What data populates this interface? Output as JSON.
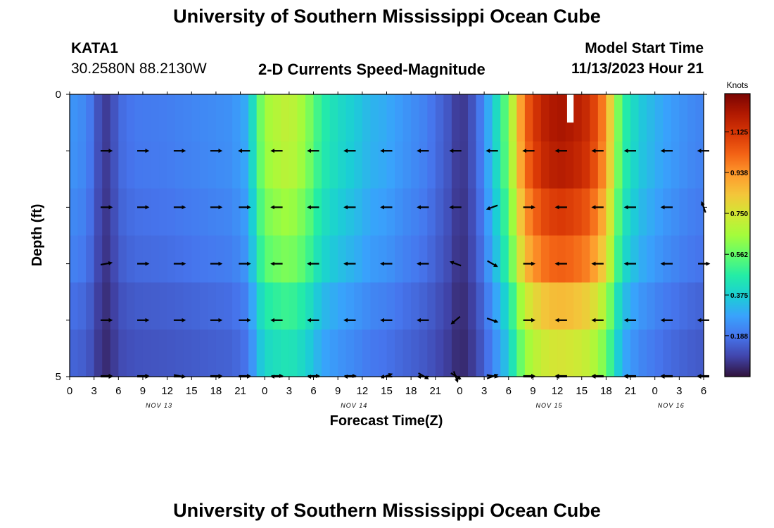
{
  "page": {
    "title": "University of Southern Mississippi Ocean Cube",
    "bottom_title": "University of Southern Mississippi Ocean Cube",
    "station_id": "KATA1",
    "station_coords": "30.2580N  88.2130W",
    "plot_title": "2-D Currents Speed-Magnitude",
    "model_start_label": "Model Start Time",
    "model_start_value": "11/13/2023 Hour 21"
  },
  "chart_data": {
    "type": "heatmap",
    "title": "2-D Currents Speed-Magnitude",
    "xlabel": "Forecast Time(Z)",
    "ylabel": "Depth (ft)",
    "colorbar_label": "Knots",
    "colorbar_ticks": [
      "0.188",
      "0.375",
      "0.562",
      "0.750",
      "0.938",
      "1.125"
    ],
    "colorbar_range": [
      0.0,
      1.3
    ],
    "colors": [
      "#30123b",
      "#4145ab",
      "#4675ed",
      "#39a2fc",
      "#1bcfd4",
      "#24eca6",
      "#61fc6c",
      "#a4fc3b",
      "#d1e834",
      "#f3c63a",
      "#fe9b2d",
      "#f36315",
      "#d93806",
      "#b11901",
      "#7a0402"
    ],
    "x_range_hours": [
      0,
      78
    ],
    "x_tick_labels": [
      "0",
      "3",
      "6",
      "9",
      "12",
      "15",
      "18",
      "21",
      "0",
      "3",
      "6",
      "9",
      "12",
      "15",
      "18",
      "21",
      "0",
      "3",
      "6",
      "9",
      "12",
      "15",
      "18",
      "21",
      "0",
      "3",
      "6"
    ],
    "date_labels": [
      {
        "text": "NOV 13",
        "hour": 11
      },
      {
        "text": "NOV 14",
        "hour": 35
      },
      {
        "text": "NOV 15",
        "hour": 59
      },
      {
        "text": "NOV 16",
        "hour": 74
      }
    ],
    "y_range": [
      0,
      5
    ],
    "y_tick_labels": [
      "0",
      "5"
    ],
    "depth_rows": [
      0.5,
      1.5,
      2.5,
      3.5,
      4.5
    ],
    "time_speed_profile": [
      [
        0,
        0.25
      ],
      [
        2,
        0.22
      ],
      [
        3,
        0.16
      ],
      [
        4,
        0.07
      ],
      [
        5,
        0.08
      ],
      [
        6,
        0.16
      ],
      [
        8,
        0.19
      ],
      [
        12,
        0.2
      ],
      [
        16,
        0.22
      ],
      [
        20,
        0.24
      ],
      [
        22,
        0.3
      ],
      [
        23,
        0.5
      ],
      [
        24,
        0.63
      ],
      [
        25,
        0.66
      ],
      [
        27,
        0.7
      ],
      [
        29,
        0.62
      ],
      [
        31,
        0.46
      ],
      [
        33,
        0.4
      ],
      [
        35,
        0.36
      ],
      [
        37,
        0.31
      ],
      [
        39,
        0.29
      ],
      [
        41,
        0.25
      ],
      [
        43,
        0.22
      ],
      [
        44,
        0.2
      ],
      [
        47,
        0.11
      ],
      [
        48,
        0.05
      ],
      [
        50,
        0.14
      ],
      [
        52,
        0.34
      ],
      [
        54,
        0.58
      ],
      [
        55,
        0.8
      ],
      [
        56,
        1.0
      ],
      [
        58,
        1.15
      ],
      [
        60,
        1.2
      ],
      [
        62,
        1.18
      ],
      [
        64,
        1.12
      ],
      [
        66,
        0.92
      ],
      [
        67,
        0.68
      ],
      [
        68,
        0.48
      ],
      [
        70,
        0.36
      ],
      [
        73,
        0.28
      ],
      [
        76,
        0.23
      ],
      [
        78,
        0.21
      ]
    ],
    "depth_factors": [
      1.02,
      1.0,
      0.93,
      0.86,
      0.72,
      0.63
    ],
    "missing_cell": {
      "hour_start": 61.2,
      "hour_end": 62.0,
      "depth_start": 0,
      "depth_end": 0.5
    },
    "arrow_times": [
      4.5,
      9,
      13.5,
      18,
      21.5,
      25.5,
      30,
      34.5,
      39,
      43.5,
      47.5,
      52,
      56.5,
      60.5,
      65,
      69,
      73.5,
      78
    ],
    "arrow_angles": [
      [
        0,
        0,
        0,
        0,
        180,
        180,
        180,
        180,
        180,
        180,
        180,
        180,
        180,
        180,
        180,
        180,
        180,
        180
      ],
      [
        0,
        0,
        0,
        0,
        0,
        180,
        180,
        180,
        180,
        180,
        180,
        200,
        0,
        180,
        180,
        180,
        180,
        110
      ],
      [
        10,
        0,
        0,
        0,
        0,
        180,
        180,
        180,
        180,
        180,
        160,
        330,
        0,
        180,
        180,
        180,
        180,
        0
      ],
      [
        0,
        0,
        0,
        0,
        0,
        180,
        180,
        180,
        180,
        180,
        220,
        340,
        0,
        180,
        180,
        180,
        180,
        180
      ],
      [
        0,
        0,
        0,
        0,
        0,
        180,
        180,
        180,
        180,
        180,
        290,
        20,
        0,
        180,
        180,
        180,
        180,
        180
      ],
      [
        0,
        0,
        350,
        0,
        0,
        0,
        0,
        0,
        20,
        330,
        330,
        350,
        0,
        180,
        180,
        180,
        180,
        180
      ]
    ]
  }
}
